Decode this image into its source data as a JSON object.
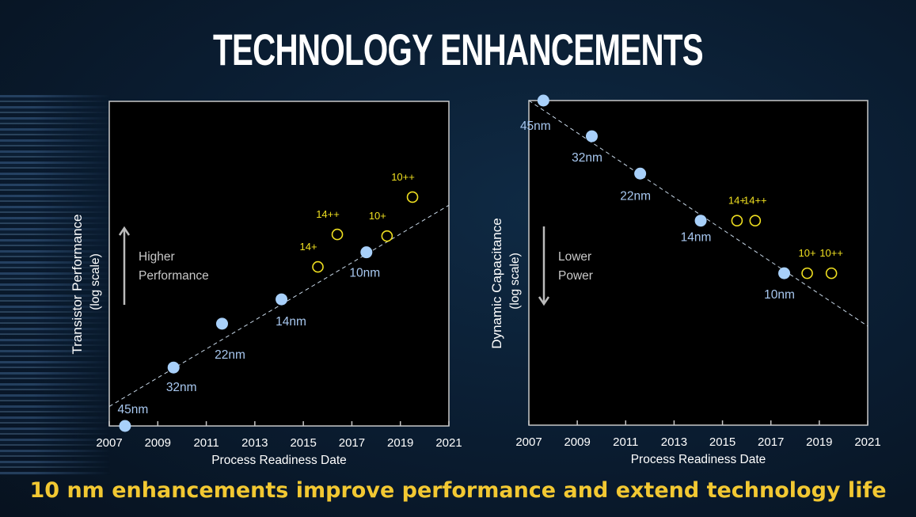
{
  "title": "TECHNOLOGY ENHANCEMENTS",
  "footer": "10 nm enhancements improve performance and extend technology life",
  "colors": {
    "node_point": "#a8d0fa",
    "node_label": "#a8c8f0",
    "enhancement": "#f0e020",
    "trend": "#c8d8e8",
    "footer": "#f2c832"
  },
  "chart_data": [
    {
      "type": "scatter",
      "xlabel": "Process Readiness Date",
      "ylabel": "Transistor Performance",
      "ylabel_sub": "(log scale)",
      "y_scale": "log",
      "annotation": [
        "Higher",
        "Performance"
      ],
      "annotation_arrow": "up",
      "xlim": [
        2007,
        2021
      ],
      "ylim": [
        0,
        100
      ],
      "x_ticks": [
        "2007",
        "2009",
        "2011",
        "2013",
        "2015",
        "2017",
        "2019",
        "2021"
      ],
      "grid": false,
      "nodes": [
        {
          "label": "45nm",
          "x": 2007.65,
          "y": 0
        },
        {
          "label": "32nm",
          "x": 2009.65,
          "y": 18
        },
        {
          "label": "22nm",
          "x": 2011.65,
          "y": 31.5
        },
        {
          "label": "14nm",
          "x": 2014.1,
          "y": 39
        },
        {
          "label": "10nm",
          "x": 2017.6,
          "y": 53.5
        }
      ],
      "enhancements": [
        {
          "label": "14+",
          "x": 2015.6,
          "y": 49
        },
        {
          "label": "14++",
          "x": 2016.4,
          "y": 59
        },
        {
          "label": "10+",
          "x": 2018.45,
          "y": 58.5
        },
        {
          "label": "10++",
          "x": 2019.5,
          "y": 70.5
        }
      ],
      "trend": [
        {
          "x": 2007,
          "y": 6
        },
        {
          "x": 2021,
          "y": 68
        }
      ]
    },
    {
      "type": "scatter",
      "xlabel": "Process Readiness Date",
      "ylabel": "Dynamic Capacitance",
      "ylabel_sub": "(log scale)",
      "y_scale": "log",
      "annotation": [
        "Lower",
        "Power"
      ],
      "annotation_arrow": "down",
      "xlim": [
        2007,
        2021
      ],
      "ylim": [
        0,
        100
      ],
      "x_ticks": [
        "2007",
        "2009",
        "2011",
        "2013",
        "2015",
        "2017",
        "2019",
        "2021"
      ],
      "grid": false,
      "nodes": [
        {
          "label": "45nm",
          "x": 2007.6,
          "y": 100
        },
        {
          "label": "32nm",
          "x": 2009.6,
          "y": 89
        },
        {
          "label": "22nm",
          "x": 2011.6,
          "y": 77.5
        },
        {
          "label": "14nm",
          "x": 2014.1,
          "y": 63
        },
        {
          "label": "10nm",
          "x": 2017.55,
          "y": 46.8
        }
      ],
      "enhancements": [
        {
          "label": "14+",
          "x": 2015.6,
          "y": 63
        },
        {
          "label": "14++",
          "x": 2016.35,
          "y": 63
        },
        {
          "label": "10+",
          "x": 2018.5,
          "y": 46.8
        },
        {
          "label": "10++",
          "x": 2019.5,
          "y": 46.8
        }
      ],
      "trend": [
        {
          "x": 2007,
          "y": 100
        },
        {
          "x": 2021,
          "y": 30.5
        }
      ]
    }
  ]
}
